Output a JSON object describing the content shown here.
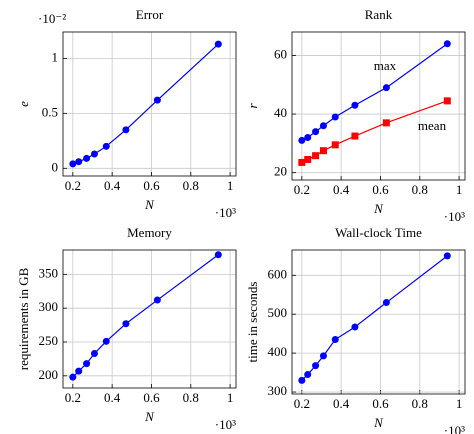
{
  "chart_data": [
    {
      "type": "line",
      "title": "Error",
      "xlabel": "N",
      "ylabel": "e",
      "x_multiplier": "·10³",
      "y_multiplier": "·10⁻²",
      "x": [
        0.2,
        0.23,
        0.27,
        0.31,
        0.37,
        0.47,
        0.63,
        0.94
      ],
      "series": [
        {
          "color": "#0000ff",
          "marker": "circle",
          "values": [
            0.04,
            0.06,
            0.09,
            0.13,
            0.2,
            0.35,
            0.62,
            1.13
          ]
        }
      ],
      "xlim": [
        0.15,
        1.03
      ],
      "ylim": [
        -0.07,
        1.24
      ],
      "xticks": [
        0.2,
        0.4,
        0.6,
        0.8,
        1
      ],
      "yticks": [
        0,
        0.5,
        1
      ],
      "grid": true
    },
    {
      "type": "line",
      "title": "Rank",
      "xlabel": "N",
      "ylabel": "r",
      "x_multiplier": "·10³",
      "x": [
        0.2,
        0.23,
        0.27,
        0.31,
        0.37,
        0.47,
        0.63,
        0.94
      ],
      "series": [
        {
          "name": "max",
          "color": "#0000ff",
          "marker": "circle",
          "values": [
            31,
            32,
            34,
            36,
            39,
            43,
            49,
            64
          ]
        },
        {
          "name": "mean",
          "color": "#ff0000",
          "marker": "square",
          "values": [
            23.5,
            24.5,
            25.8,
            27.5,
            29.5,
            32.5,
            37,
            44.5
          ]
        }
      ],
      "xlim": [
        0.15,
        1.03
      ],
      "ylim": [
        17.5,
        68
      ],
      "xticks": [
        0.2,
        0.4,
        0.6,
        0.8,
        1
      ],
      "yticks": [
        20,
        40,
        60
      ],
      "grid": true
    },
    {
      "type": "line",
      "title": "Memory",
      "xlabel": "N",
      "ylabel": "requirements in GB",
      "x_multiplier": "·10³",
      "x": [
        0.2,
        0.23,
        0.27,
        0.31,
        0.37,
        0.47,
        0.63,
        0.94
      ],
      "series": [
        {
          "color": "#0000ff",
          "marker": "circle",
          "values": [
            198,
            207,
            218,
            233,
            251,
            277,
            312,
            379
          ]
        }
      ],
      "xlim": [
        0.15,
        1.03
      ],
      "ylim": [
        182,
        386
      ],
      "xticks": [
        0.2,
        0.4,
        0.6,
        0.8,
        1
      ],
      "yticks": [
        200,
        250,
        300,
        350
      ],
      "grid": true
    },
    {
      "type": "line",
      "title": "Wall-clock Time",
      "xlabel": "N",
      "ylabel": "time in seconds",
      "x_multiplier": "·10³",
      "x": [
        0.2,
        0.23,
        0.27,
        0.31,
        0.37,
        0.47,
        0.63,
        0.94
      ],
      "series": [
        {
          "color": "#0000ff",
          "marker": "circle",
          "values": [
            330,
            345,
            368,
            393,
            435,
            467,
            530,
            650
          ]
        }
      ],
      "xlim": [
        0.15,
        1.03
      ],
      "ylim": [
        295,
        665
      ],
      "xticks": [
        0.2,
        0.4,
        0.6,
        0.8,
        1
      ],
      "yticks": [
        300,
        400,
        500,
        600
      ],
      "grid": true
    }
  ]
}
